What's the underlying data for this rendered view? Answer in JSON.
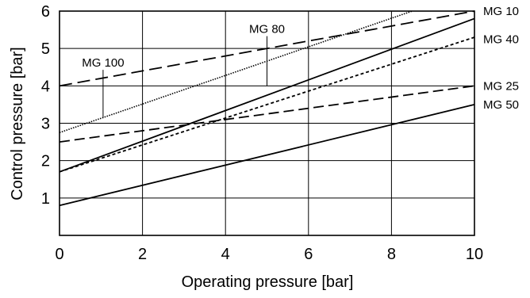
{
  "chart_data": {
    "type": "line",
    "title": "",
    "xlabel": "Operating pressure [bar]",
    "ylabel": "Control pressure [bar]",
    "xlim": [
      0,
      10
    ],
    "ylim": [
      0,
      6
    ],
    "x_ticks": [
      0,
      2,
      4,
      6,
      8,
      10
    ],
    "y_ticks": [
      1,
      2,
      3,
      4,
      5,
      6
    ],
    "grid": true,
    "series": [
      {
        "name": "MG 10",
        "style": "solid",
        "x": [
          0,
          10
        ],
        "y": [
          1.7,
          5.8
        ],
        "label_y": 6.0
      },
      {
        "name": "MG 40",
        "style": "short-dashed",
        "x": [
          0,
          10
        ],
        "y": [
          1.7,
          5.3
        ],
        "label_y": 5.25
      },
      {
        "name": "MG 25",
        "style": "dashed",
        "x": [
          0,
          10
        ],
        "y": [
          2.5,
          4.0
        ],
        "label_y": 4.0
      },
      {
        "name": "MG 50",
        "style": "solid",
        "x": [
          0,
          10
        ],
        "y": [
          0.8,
          3.5
        ],
        "label_y": 3.5
      },
      {
        "name": "MG 80",
        "style": "dotted",
        "x": [
          0,
          8.5
        ],
        "y": [
          2.75,
          6.0
        ],
        "label_x": 5.0,
        "label_y": 5.35,
        "leader_to_y": 4.0
      },
      {
        "name": "MG 100",
        "style": "long-dashed",
        "x": [
          0,
          10
        ],
        "y": [
          4.0,
          6.0
        ],
        "label_x": 1.05,
        "label_y": 4.45,
        "leader_to_y": 3.15
      }
    ]
  }
}
